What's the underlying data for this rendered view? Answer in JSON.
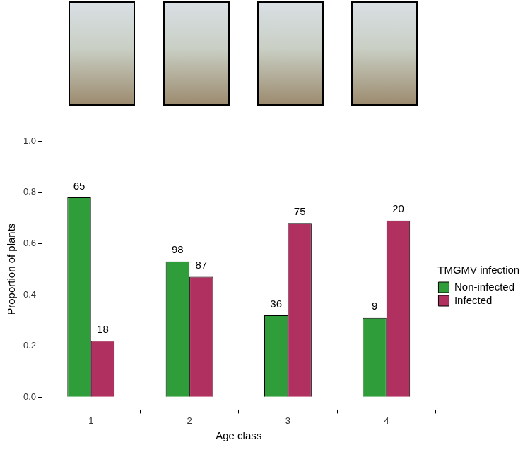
{
  "chart_data": {
    "type": "bar",
    "x_label": "Age class",
    "y_label": "Proportion of plants",
    "legend_title": "TMGMV infection",
    "legend": "right",
    "grid": false,
    "categories": [
      "1",
      "2",
      "3",
      "4"
    ],
    "series": [
      {
        "name": "Non-infected",
        "color": "#2f9e3a",
        "values": [
          0.78,
          0.53,
          0.32,
          0.31
        ],
        "counts": [
          65,
          98,
          36,
          9
        ]
      },
      {
        "name": "Infected",
        "color": "#b0305f",
        "values": [
          0.22,
          0.47,
          0.68,
          0.69
        ],
        "counts": [
          18,
          87,
          75,
          20
        ]
      }
    ],
    "ylim": [
      -0.05,
      1.05
    ],
    "yticks": [
      {
        "value": 0,
        "label": "0.0"
      },
      {
        "value": 0.2,
        "label": "0.2"
      },
      {
        "value": 0.4,
        "label": "0.4"
      },
      {
        "value": 0.6,
        "label": "0.6"
      },
      {
        "value": 0.8,
        "label": "0.8"
      },
      {
        "value": 1,
        "label": "1.0"
      }
    ]
  }
}
